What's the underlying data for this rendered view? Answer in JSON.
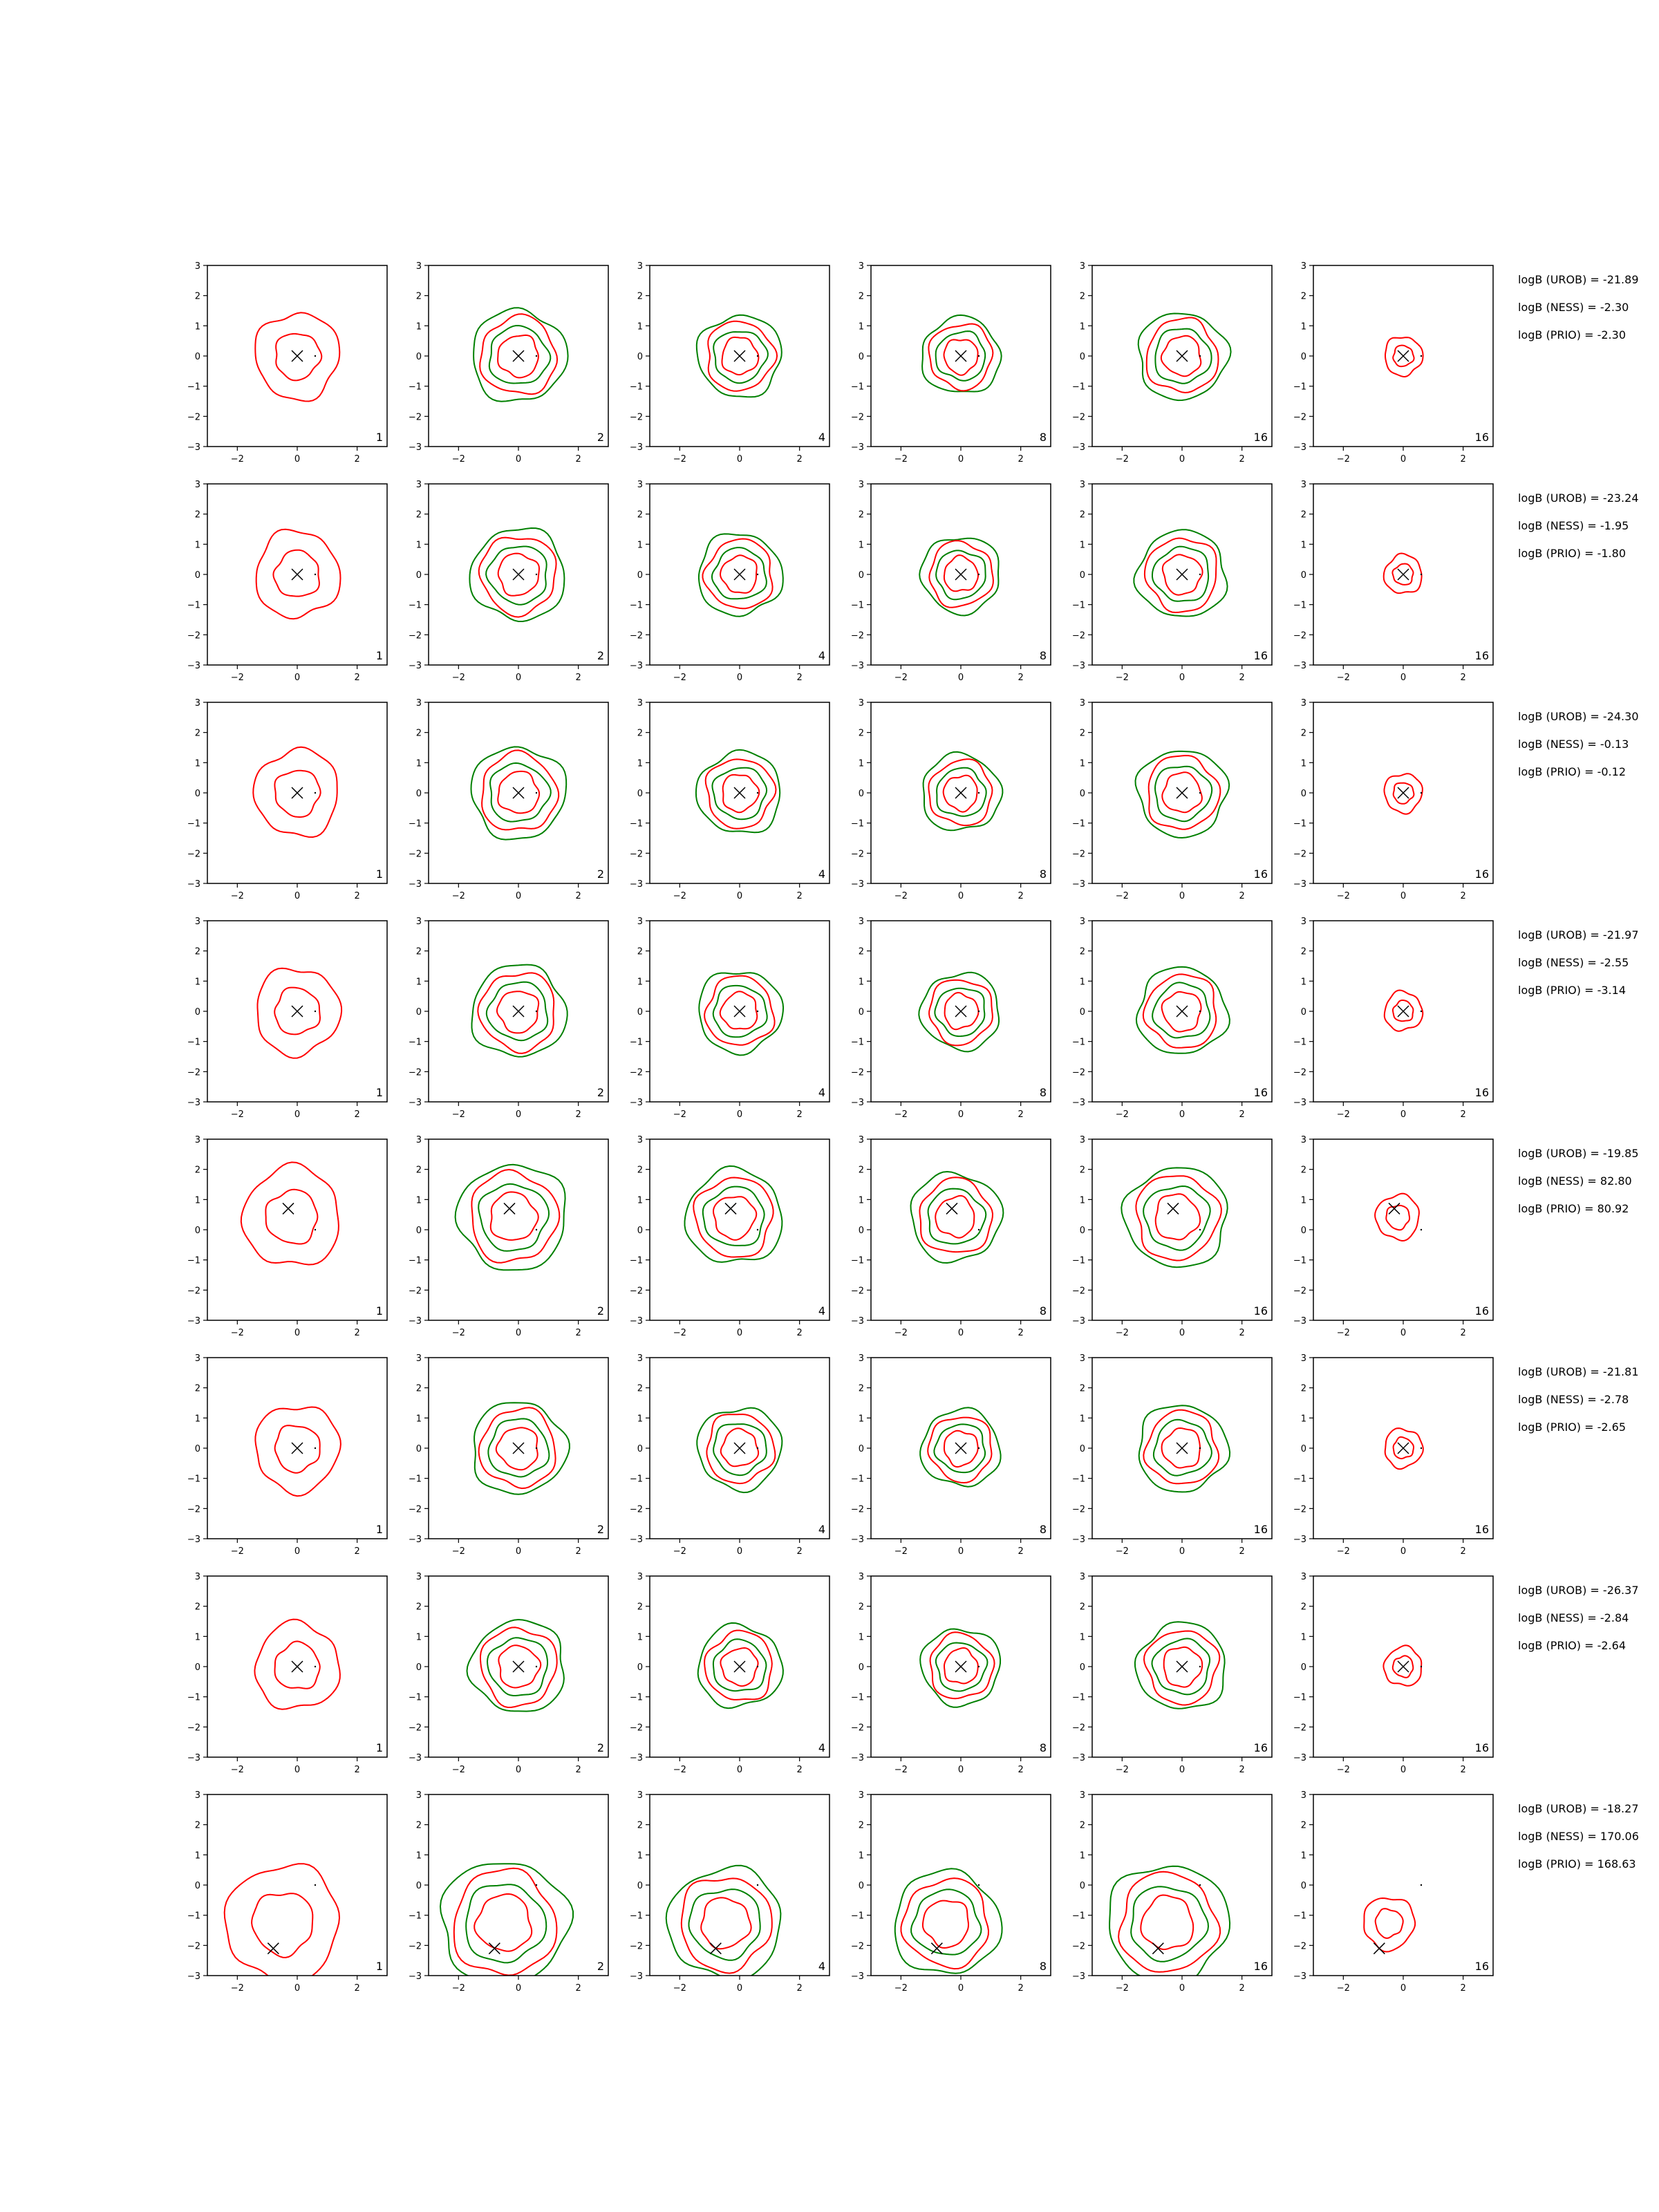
{
  "chart_data": {
    "type": "contour-grid",
    "xlim": [
      -3,
      3
    ],
    "ylim": [
      -3,
      3
    ],
    "xticks": [
      "−2",
      "0",
      "2"
    ],
    "yticks": [
      "−3",
      "−2",
      "−1",
      "0",
      "1",
      "2",
      "3"
    ],
    "series_colors": {
      "red": "#ff0000",
      "green": "#008000",
      "marker": "#000000"
    },
    "columns": [
      {
        "label": "1",
        "has_green": false,
        "spread": 1.0
      },
      {
        "label": "2",
        "has_green": true,
        "spread": 0.9
      },
      {
        "label": "4",
        "has_green": true,
        "spread": 0.8
      },
      {
        "label": "8",
        "has_green": true,
        "spread": 0.75
      },
      {
        "label": "16",
        "has_green": true,
        "spread": 0.85
      },
      {
        "label": "16",
        "has_green": false,
        "spread": 0.45
      }
    ],
    "rows": [
      {
        "cross": [
          0,
          0
        ],
        "dot": [
          0.6,
          0
        ],
        "annotations": [
          "logB (UROB) = -21.89",
          "logB (NESS) = -2.30",
          "logB (PRIO) = -2.30"
        ]
      },
      {
        "cross": [
          0,
          0
        ],
        "dot": [
          0.6,
          0
        ],
        "annotations": [
          "logB (UROB) = -23.24",
          "logB (NESS) = -1.95",
          "logB (PRIO) = -1.80"
        ]
      },
      {
        "cross": [
          0,
          0
        ],
        "dot": [
          0.6,
          0
        ],
        "annotations": [
          "logB (UROB) = -24.30",
          "logB (NESS) = -0.13",
          "logB (PRIO) = -0.12"
        ]
      },
      {
        "cross": [
          0,
          0
        ],
        "dot": [
          0.6,
          0
        ],
        "annotations": [
          "logB (UROB) = -21.97",
          "logB (NESS) = -2.55",
          "logB (PRIO) = -3.14"
        ]
      },
      {
        "cross": [
          -0.3,
          0.7
        ],
        "dot": [
          0.6,
          0
        ],
        "annotations": [
          "logB (UROB) = -19.85",
          "logB (NESS) = 82.80",
          "logB (PRIO) = 80.92"
        ]
      },
      {
        "cross": [
          0,
          0
        ],
        "dot": [
          0.6,
          0
        ],
        "annotations": [
          "logB (UROB) = -21.81",
          "logB (NESS) = -2.78",
          "logB (PRIO) = -2.65"
        ]
      },
      {
        "cross": [
          0,
          0
        ],
        "dot": [
          0.6,
          0
        ],
        "annotations": [
          "logB (UROB) = -26.37",
          "logB (NESS) = -2.84",
          "logB (PRIO) = -2.64"
        ]
      },
      {
        "cross": [
          -0.8,
          -2.1
        ],
        "dot": [
          0.6,
          0
        ],
        "annotations": [
          "logB (UROB) = -18.27",
          "logB (NESS) = 170.06",
          "logB (PRIO) = 168.63"
        ]
      }
    ]
  }
}
